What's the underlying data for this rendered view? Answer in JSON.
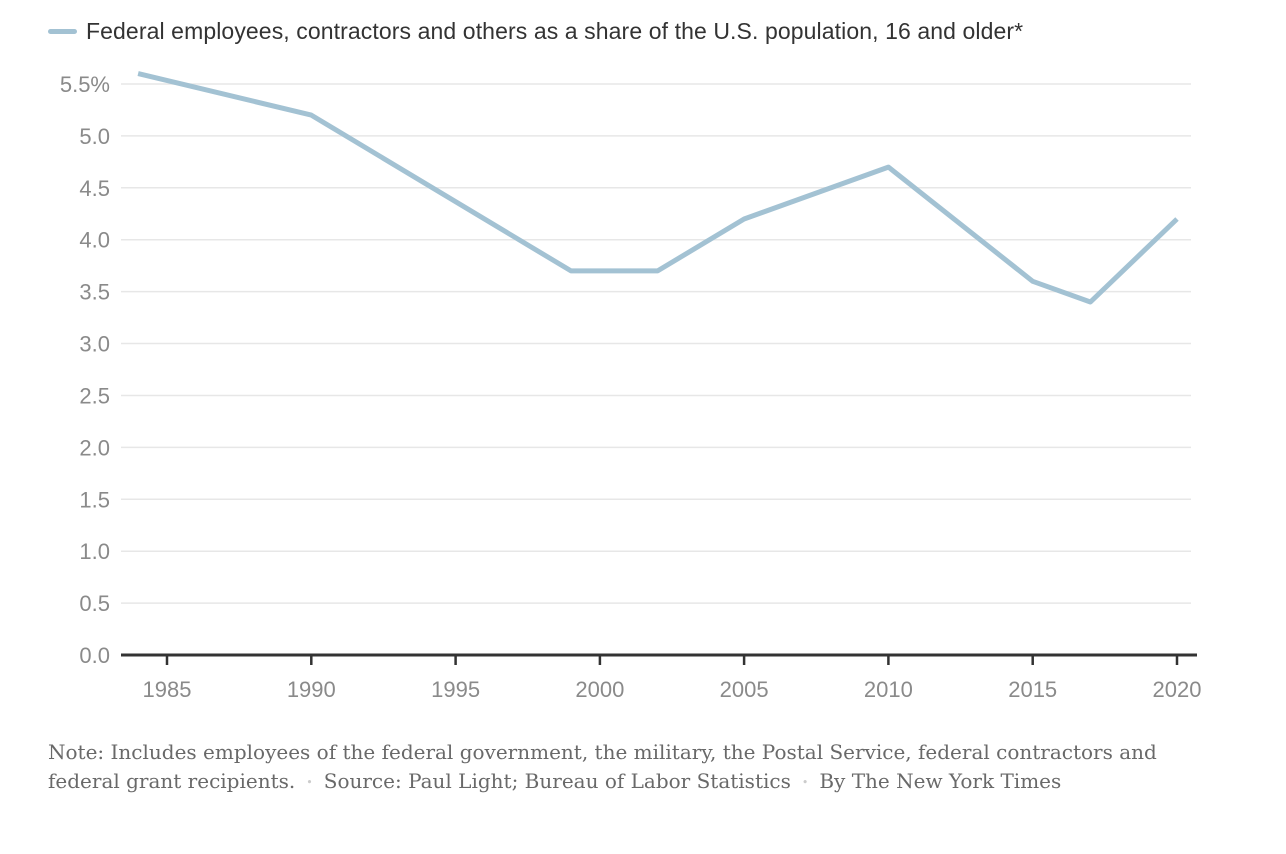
{
  "legend": {
    "label": "Federal employees, contractors and others as a share of the U.S. population, 16 and older*",
    "swatch_color": "#a3c2d3"
  },
  "chart_data": {
    "type": "line",
    "title": "",
    "xlabel": "",
    "ylabel": "",
    "unit": "percent of U.S. population 16 and older",
    "series": [
      {
        "name": "Federal employees, contractors and others as a share of the U.S. population, 16 and older*",
        "color": "#a3c2d3",
        "x": [
          1984,
          1990,
          1999,
          2002,
          2005,
          2010,
          2015,
          2017,
          2020
        ],
        "values": [
          5.6,
          5.2,
          3.7,
          3.7,
          4.2,
          4.7,
          3.6,
          3.4,
          4.2
        ]
      }
    ],
    "x_ticks": [
      1985,
      1990,
      1995,
      2000,
      2005,
      2010,
      2015,
      2020
    ],
    "x_tick_labels": [
      "1985",
      "1990",
      "1995",
      "2000",
      "2005",
      "2010",
      "2015",
      "2020"
    ],
    "y_ticks": [
      5.5,
      5.0,
      4.5,
      4.0,
      3.5,
      3.0,
      2.5,
      2.0,
      1.5,
      1.0,
      0.5,
      0.0
    ],
    "y_tick_labels": [
      "5.5%",
      "5.0",
      "4.5",
      "4.0",
      "3.5",
      "3.0",
      "2.5",
      "2.0",
      "1.5",
      "1.0",
      "0.5",
      "0.0"
    ],
    "ylim": [
      0,
      5.5
    ],
    "xlim": [
      1984,
      2020.7
    ],
    "grid": true,
    "legend_position": "top-left"
  },
  "footer": {
    "note": "Note: Includes employees of the federal government, the military, the Postal Service, federal contractors and federal grant recipients.",
    "source": "Source: Paul Light; Bureau of Labor Statistics",
    "byline": "By The New York Times",
    "separator": "•"
  },
  "colors": {
    "line": "#a3c2d3",
    "gridline": "#e7e7e7",
    "axis": "#333333",
    "tick_label": "#8a8a8a",
    "legend_text": "#333333",
    "footer_text": "#696969",
    "bullet": "#cccccc",
    "background": "#ffffff"
  }
}
